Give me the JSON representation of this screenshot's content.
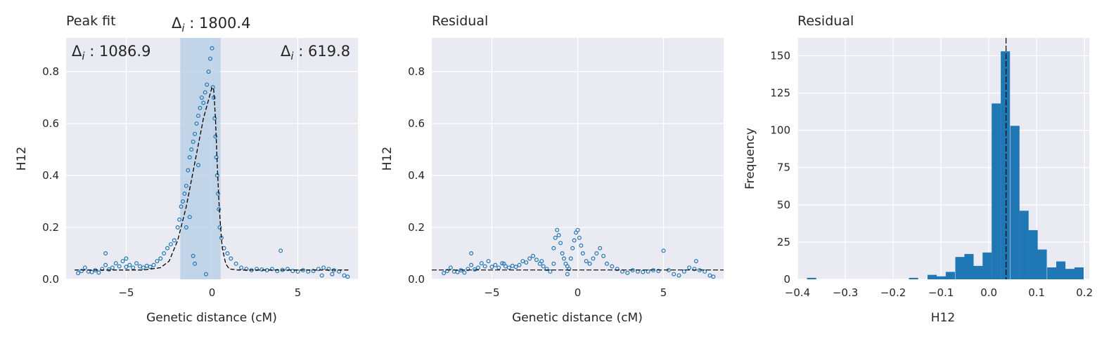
{
  "colors": {
    "axes_bg": "#EAEAF2",
    "grid": "#FFFFFF",
    "accent": "#1F77B4",
    "fit_line": "#000000",
    "highlight": "#B4CCE4"
  },
  "chart_data": [
    {
      "type": "scatter",
      "title": "Peak fit",
      "xlabel": "Genetic distance (cM)",
      "ylabel": "H12",
      "xlim": [
        -8.5,
        8.5
      ],
      "ylim": [
        0,
        0.93
      ],
      "xticks": [
        "−5",
        "0",
        "5"
      ],
      "yticks": [
        "0.0",
        "0.2",
        "0.4",
        "0.6",
        "0.8"
      ],
      "grid": true,
      "series": [
        {
          "points": [
            [
              -7.8,
              0.024
            ],
            [
              -7.6,
              0.032
            ],
            [
              -7.4,
              0.045
            ],
            [
              -7.2,
              0.03
            ],
            [
              -7.0,
              0.028
            ],
            [
              -6.8,
              0.035
            ],
            [
              -6.6,
              0.026
            ],
            [
              -6.4,
              0.04
            ],
            [
              -6.2,
              0.055
            ],
            [
              -6.0,
              0.038
            ],
            [
              -5.8,
              0.045
            ],
            [
              -5.6,
              0.062
            ],
            [
              -5.4,
              0.05
            ],
            [
              -5.2,
              0.07
            ],
            [
              -5.0,
              0.048
            ],
            [
              -4.8,
              0.055
            ],
            [
              -4.6,
              0.045
            ],
            [
              -4.4,
              0.062
            ],
            [
              -4.2,
              0.05
            ],
            [
              -4.0,
              0.045
            ],
            [
              -3.8,
              0.052
            ],
            [
              -3.6,
              0.048
            ],
            [
              -3.4,
              0.055
            ],
            [
              -3.2,
              0.07
            ],
            [
              -3.0,
              0.08
            ],
            [
              -2.8,
              0.1
            ],
            [
              -2.6,
              0.12
            ],
            [
              -2.4,
              0.135
            ],
            [
              -2.2,
              0.15
            ],
            [
              -2.0,
              0.2
            ],
            [
              -1.9,
              0.23
            ],
            [
              -1.8,
              0.28
            ],
            [
              -1.7,
              0.3
            ],
            [
              -1.6,
              0.33
            ],
            [
              -1.5,
              0.36
            ],
            [
              -1.4,
              0.42
            ],
            [
              -1.3,
              0.47
            ],
            [
              -1.2,
              0.5
            ],
            [
              -1.1,
              0.53
            ],
            [
              -1.0,
              0.56
            ],
            [
              -0.9,
              0.6
            ],
            [
              -0.8,
              0.63
            ],
            [
              -0.7,
              0.66
            ],
            [
              -0.6,
              0.7
            ],
            [
              -0.5,
              0.68
            ],
            [
              -0.4,
              0.72
            ],
            [
              -0.3,
              0.75
            ],
            [
              -0.2,
              0.8
            ],
            [
              -0.1,
              0.85
            ],
            [
              0.0,
              0.89
            ],
            [
              0.05,
              0.74
            ],
            [
              0.1,
              0.7
            ],
            [
              0.15,
              0.62
            ],
            [
              0.2,
              0.55
            ],
            [
              0.25,
              0.47
            ],
            [
              0.3,
              0.4
            ],
            [
              0.35,
              0.33
            ],
            [
              0.4,
              0.27
            ],
            [
              0.45,
              0.2
            ],
            [
              0.55,
              0.16
            ],
            [
              0.7,
              0.12
            ],
            [
              0.9,
              0.1
            ],
            [
              1.1,
              0.08
            ],
            [
              1.4,
              0.06
            ],
            [
              1.7,
              0.045
            ],
            [
              2.0,
              0.04
            ],
            [
              2.3,
              0.035
            ],
            [
              2.6,
              0.04
            ],
            [
              2.9,
              0.038
            ],
            [
              3.2,
              0.035
            ],
            [
              3.5,
              0.04
            ],
            [
              3.8,
              0.032
            ],
            [
              4.1,
              0.036
            ],
            [
              4.4,
              0.04
            ],
            [
              4.7,
              0.032
            ],
            [
              5.0,
              0.03
            ],
            [
              5.3,
              0.035
            ],
            [
              5.6,
              0.03
            ],
            [
              5.9,
              0.032
            ],
            [
              6.2,
              0.04
            ],
            [
              6.5,
              0.045
            ],
            [
              6.8,
              0.04
            ],
            [
              7.1,
              0.035
            ],
            [
              7.4,
              0.03
            ],
            [
              7.7,
              0.015
            ],
            [
              7.9,
              0.01
            ],
            [
              -6.2,
              0.1
            ],
            [
              -5.0,
              0.08
            ],
            [
              -1.1,
              0.09
            ],
            [
              -1.0,
              0.06
            ],
            [
              -0.35,
              0.02
            ],
            [
              -1.5,
              0.2
            ],
            [
              -1.3,
              0.24
            ],
            [
              -0.8,
              0.44
            ],
            [
              4.0,
              0.11
            ],
            [
              6.4,
              0.015
            ],
            [
              7.0,
              0.02
            ]
          ]
        }
      ],
      "fit_curve": [
        [
          -8.0,
          0.036
        ],
        [
          -4.0,
          0.036
        ],
        [
          -3.0,
          0.045
        ],
        [
          -2.5,
          0.07
        ],
        [
          -2.0,
          0.15
        ],
        [
          -1.5,
          0.28
        ],
        [
          -1.0,
          0.45
        ],
        [
          -0.5,
          0.62
        ],
        [
          0.0,
          0.74
        ],
        [
          0.1,
          0.73
        ],
        [
          0.2,
          0.62
        ],
        [
          0.3,
          0.45
        ],
        [
          0.4,
          0.3
        ],
        [
          0.5,
          0.2
        ],
        [
          0.6,
          0.12
        ],
        [
          0.8,
          0.06
        ],
        [
          1.0,
          0.04
        ],
        [
          1.5,
          0.036
        ],
        [
          8.0,
          0.036
        ]
      ],
      "shaded_region": [
        -1.85,
        0.5
      ],
      "annotations": [
        "Δ",
        "i",
        " : 1800.4",
        "Δ",
        "i",
        " : 1086.9",
        "Δ",
        "i",
        " : 619.8"
      ]
    },
    {
      "type": "scatter",
      "title": "Residual",
      "xlabel": "Genetic distance (cM)",
      "ylabel": "H12",
      "xlim": [
        -8.5,
        8.5
      ],
      "ylim": [
        0,
        0.93
      ],
      "xticks": [
        "−5",
        "0",
        "5"
      ],
      "yticks": [
        "0.0",
        "0.2",
        "0.4",
        "0.6",
        "0.8"
      ],
      "grid": true,
      "hline": 0.036,
      "series": [
        {
          "points": [
            [
              -7.8,
              0.024
            ],
            [
              -7.6,
              0.032
            ],
            [
              -7.4,
              0.045
            ],
            [
              -7.2,
              0.03
            ],
            [
              -7.0,
              0.028
            ],
            [
              -6.8,
              0.035
            ],
            [
              -6.6,
              0.026
            ],
            [
              -6.4,
              0.04
            ],
            [
              -6.2,
              0.055
            ],
            [
              -6.0,
              0.038
            ],
            [
              -5.8,
              0.045
            ],
            [
              -5.6,
              0.062
            ],
            [
              -5.4,
              0.05
            ],
            [
              -5.2,
              0.07
            ],
            [
              -5.0,
              0.048
            ],
            [
              -4.8,
              0.055
            ],
            [
              -4.6,
              0.045
            ],
            [
              -4.4,
              0.062
            ],
            [
              -4.2,
              0.05
            ],
            [
              -4.0,
              0.045
            ],
            [
              -3.8,
              0.052
            ],
            [
              -3.6,
              0.048
            ],
            [
              -3.4,
              0.055
            ],
            [
              -3.2,
              0.07
            ],
            [
              -3.0,
              0.065
            ],
            [
              -2.8,
              0.08
            ],
            [
              -2.6,
              0.09
            ],
            [
              -2.4,
              0.075
            ],
            [
              -2.2,
              0.06
            ],
            [
              -2.0,
              0.05
            ],
            [
              -1.8,
              0.04
            ],
            [
              -1.6,
              0.03
            ],
            [
              -1.4,
              0.12
            ],
            [
              -1.3,
              0.16
            ],
            [
              -1.2,
              0.19
            ],
            [
              -1.1,
              0.17
            ],
            [
              -1.0,
              0.14
            ],
            [
              -0.9,
              0.1
            ],
            [
              -0.8,
              0.08
            ],
            [
              -0.7,
              0.06
            ],
            [
              -0.6,
              0.05
            ],
            [
              -0.5,
              0.04
            ],
            [
              -0.4,
              0.08
            ],
            [
              -0.3,
              0.12
            ],
            [
              -0.2,
              0.15
            ],
            [
              -0.1,
              0.18
            ],
            [
              0.0,
              0.19
            ],
            [
              0.1,
              0.16
            ],
            [
              0.2,
              0.13
            ],
            [
              0.3,
              0.1
            ],
            [
              0.5,
              0.07
            ],
            [
              0.7,
              0.06
            ],
            [
              0.9,
              0.08
            ],
            [
              1.1,
              0.1
            ],
            [
              1.3,
              0.12
            ],
            [
              1.5,
              0.09
            ],
            [
              1.7,
              0.06
            ],
            [
              2.0,
              0.05
            ],
            [
              2.3,
              0.04
            ],
            [
              2.6,
              0.03
            ],
            [
              2.9,
              0.025
            ],
            [
              3.2,
              0.035
            ],
            [
              3.5,
              0.03
            ],
            [
              3.8,
              0.028
            ],
            [
              4.1,
              0.03
            ],
            [
              4.4,
              0.035
            ],
            [
              4.7,
              0.032
            ],
            [
              5.0,
              0.11
            ],
            [
              5.3,
              0.035
            ],
            [
              5.6,
              0.02
            ],
            [
              5.9,
              0.015
            ],
            [
              6.2,
              0.03
            ],
            [
              6.5,
              0.045
            ],
            [
              6.8,
              0.04
            ],
            [
              7.1,
              0.035
            ],
            [
              7.4,
              0.03
            ],
            [
              7.7,
              0.015
            ],
            [
              7.9,
              0.01
            ],
            [
              -6.2,
              0.1
            ],
            [
              -1.4,
              0.06
            ],
            [
              -0.6,
              0.02
            ],
            [
              -2.1,
              0.07
            ],
            [
              6.9,
              0.07
            ],
            [
              -4.3,
              0.06
            ]
          ]
        }
      ]
    },
    {
      "type": "bar",
      "title": "Residual",
      "xlabel": "H12",
      "ylabel": "Frequency",
      "xlim": [
        -0.4,
        0.21
      ],
      "ylim": [
        0,
        162
      ],
      "xticks": [
        "−0.4",
        "−0.3",
        "−0.2",
        "−0.1",
        "0.0",
        "0.1",
        "0.2"
      ],
      "yticks": [
        "0",
        "25",
        "50",
        "75",
        "100",
        "125",
        "150"
      ],
      "grid": true,
      "vline": 0.036,
      "bin_width": 0.0192,
      "bins": [
        {
          "x0": -0.38,
          "count": 1
        },
        {
          "x0": -0.167,
          "count": 1
        },
        {
          "x0": -0.128,
          "count": 3
        },
        {
          "x0": -0.109,
          "count": 2
        },
        {
          "x0": -0.09,
          "count": 5
        },
        {
          "x0": -0.07,
          "count": 15
        },
        {
          "x0": -0.051,
          "count": 17
        },
        {
          "x0": -0.032,
          "count": 9
        },
        {
          "x0": -0.013,
          "count": 18
        },
        {
          "x0": 0.006,
          "count": 118
        },
        {
          "x0": 0.025,
          "count": 153
        },
        {
          "x0": 0.045,
          "count": 103
        },
        {
          "x0": 0.064,
          "count": 46
        },
        {
          "x0": 0.083,
          "count": 33
        },
        {
          "x0": 0.102,
          "count": 20
        },
        {
          "x0": 0.122,
          "count": 8
        },
        {
          "x0": 0.141,
          "count": 12
        },
        {
          "x0": 0.16,
          "count": 7
        },
        {
          "x0": 0.179,
          "count": 8
        }
      ]
    }
  ]
}
